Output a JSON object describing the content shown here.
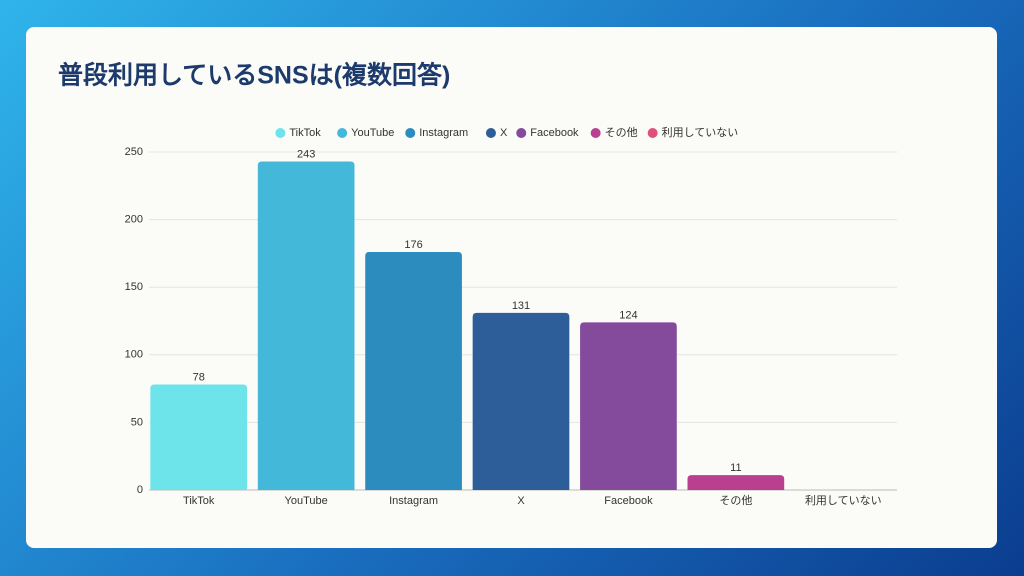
{
  "chart_data": {
    "type": "bar",
    "title": "普段利用しているSNSは(複数回答)",
    "categories": [
      "TikTok",
      "YouTube",
      "Instagram",
      "X",
      "Facebook",
      "その他",
      "利用していない"
    ],
    "values": [
      78,
      243,
      176,
      131,
      124,
      11,
      null
    ],
    "colors": [
      "#6de4ea",
      "#44b8d9",
      "#2b8cbd",
      "#2d5e99",
      "#844a9c",
      "#b8408f",
      "#e0507f"
    ],
    "ylim": [
      0,
      250
    ],
    "yticks": [
      0,
      50,
      100,
      150,
      200,
      250
    ],
    "grid": true,
    "legend": "top"
  }
}
